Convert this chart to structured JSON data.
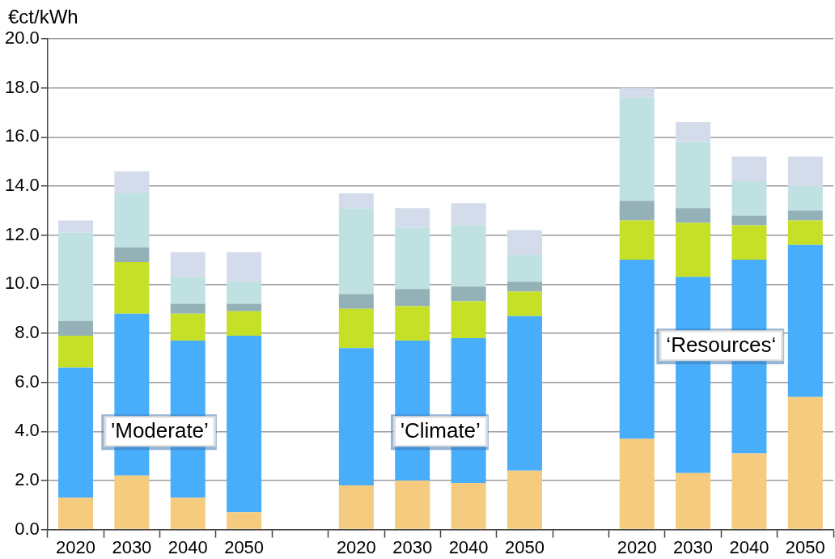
{
  "chart_data": {
    "type": "bar",
    "stacked": true,
    "ylabel": "€ct/kWh",
    "categories": [
      "2020",
      "2030",
      "2040",
      "2050",
      null,
      "2020",
      "2030",
      "2040",
      "2050",
      null,
      "2020",
      "2030",
      "2040",
      "2050"
    ],
    "series": [
      {
        "color": "#f5cb7f",
        "values": [
          1.3,
          2.2,
          1.3,
          0.7,
          null,
          1.8,
          2.0,
          1.9,
          2.4,
          null,
          3.7,
          2.3,
          3.1,
          5.4
        ]
      },
      {
        "color": "#48aefb",
        "values": [
          5.3,
          6.6,
          6.4,
          7.2,
          null,
          5.6,
          5.7,
          5.9,
          6.3,
          null,
          7.3,
          8.0,
          7.9,
          6.2
        ]
      },
      {
        "color": "#c6e027",
        "values": [
          1.3,
          2.1,
          1.1,
          1.0,
          null,
          1.6,
          1.4,
          1.5,
          1.0,
          null,
          1.6,
          2.2,
          1.4,
          1.0
        ]
      },
      {
        "color": "#93b1b6",
        "values": [
          0.6,
          0.6,
          0.4,
          0.3,
          null,
          0.6,
          0.7,
          0.6,
          0.4,
          null,
          0.8,
          0.6,
          0.4,
          0.4
        ]
      },
      {
        "color": "#bfe1e2",
        "values": [
          3.6,
          2.2,
          1.1,
          0.9,
          null,
          3.5,
          2.5,
          2.5,
          1.1,
          null,
          4.2,
          2.7,
          1.4,
          1.0
        ]
      },
      {
        "color": "#d4dcec",
        "values": [
          0.5,
          0.9,
          1.0,
          1.2,
          null,
          0.6,
          0.8,
          0.9,
          1.0,
          null,
          0.4,
          0.8,
          1.0,
          1.2
        ]
      }
    ],
    "ylim": [
      0,
      20
    ],
    "yticks": [
      {
        "value": 0,
        "label": "0.0"
      },
      {
        "value": 2,
        "label": "2.0"
      },
      {
        "value": 4,
        "label": "4.0"
      },
      {
        "value": 6,
        "label": "6.0"
      },
      {
        "value": 8,
        "label": "8.0"
      },
      {
        "value": 10,
        "label": "10.0"
      },
      {
        "value": 12,
        "label": "12.0"
      },
      {
        "value": 14,
        "label": "14.0"
      },
      {
        "value": 16,
        "label": "16.0"
      },
      {
        "value": 18,
        "label": "18.0"
      },
      {
        "value": 20,
        "label": "20.0"
      }
    ],
    "grid": "y",
    "legend": false,
    "annotations": [
      "'Moderate’",
      "'Climate’",
      "‘Resources‘"
    ]
  }
}
